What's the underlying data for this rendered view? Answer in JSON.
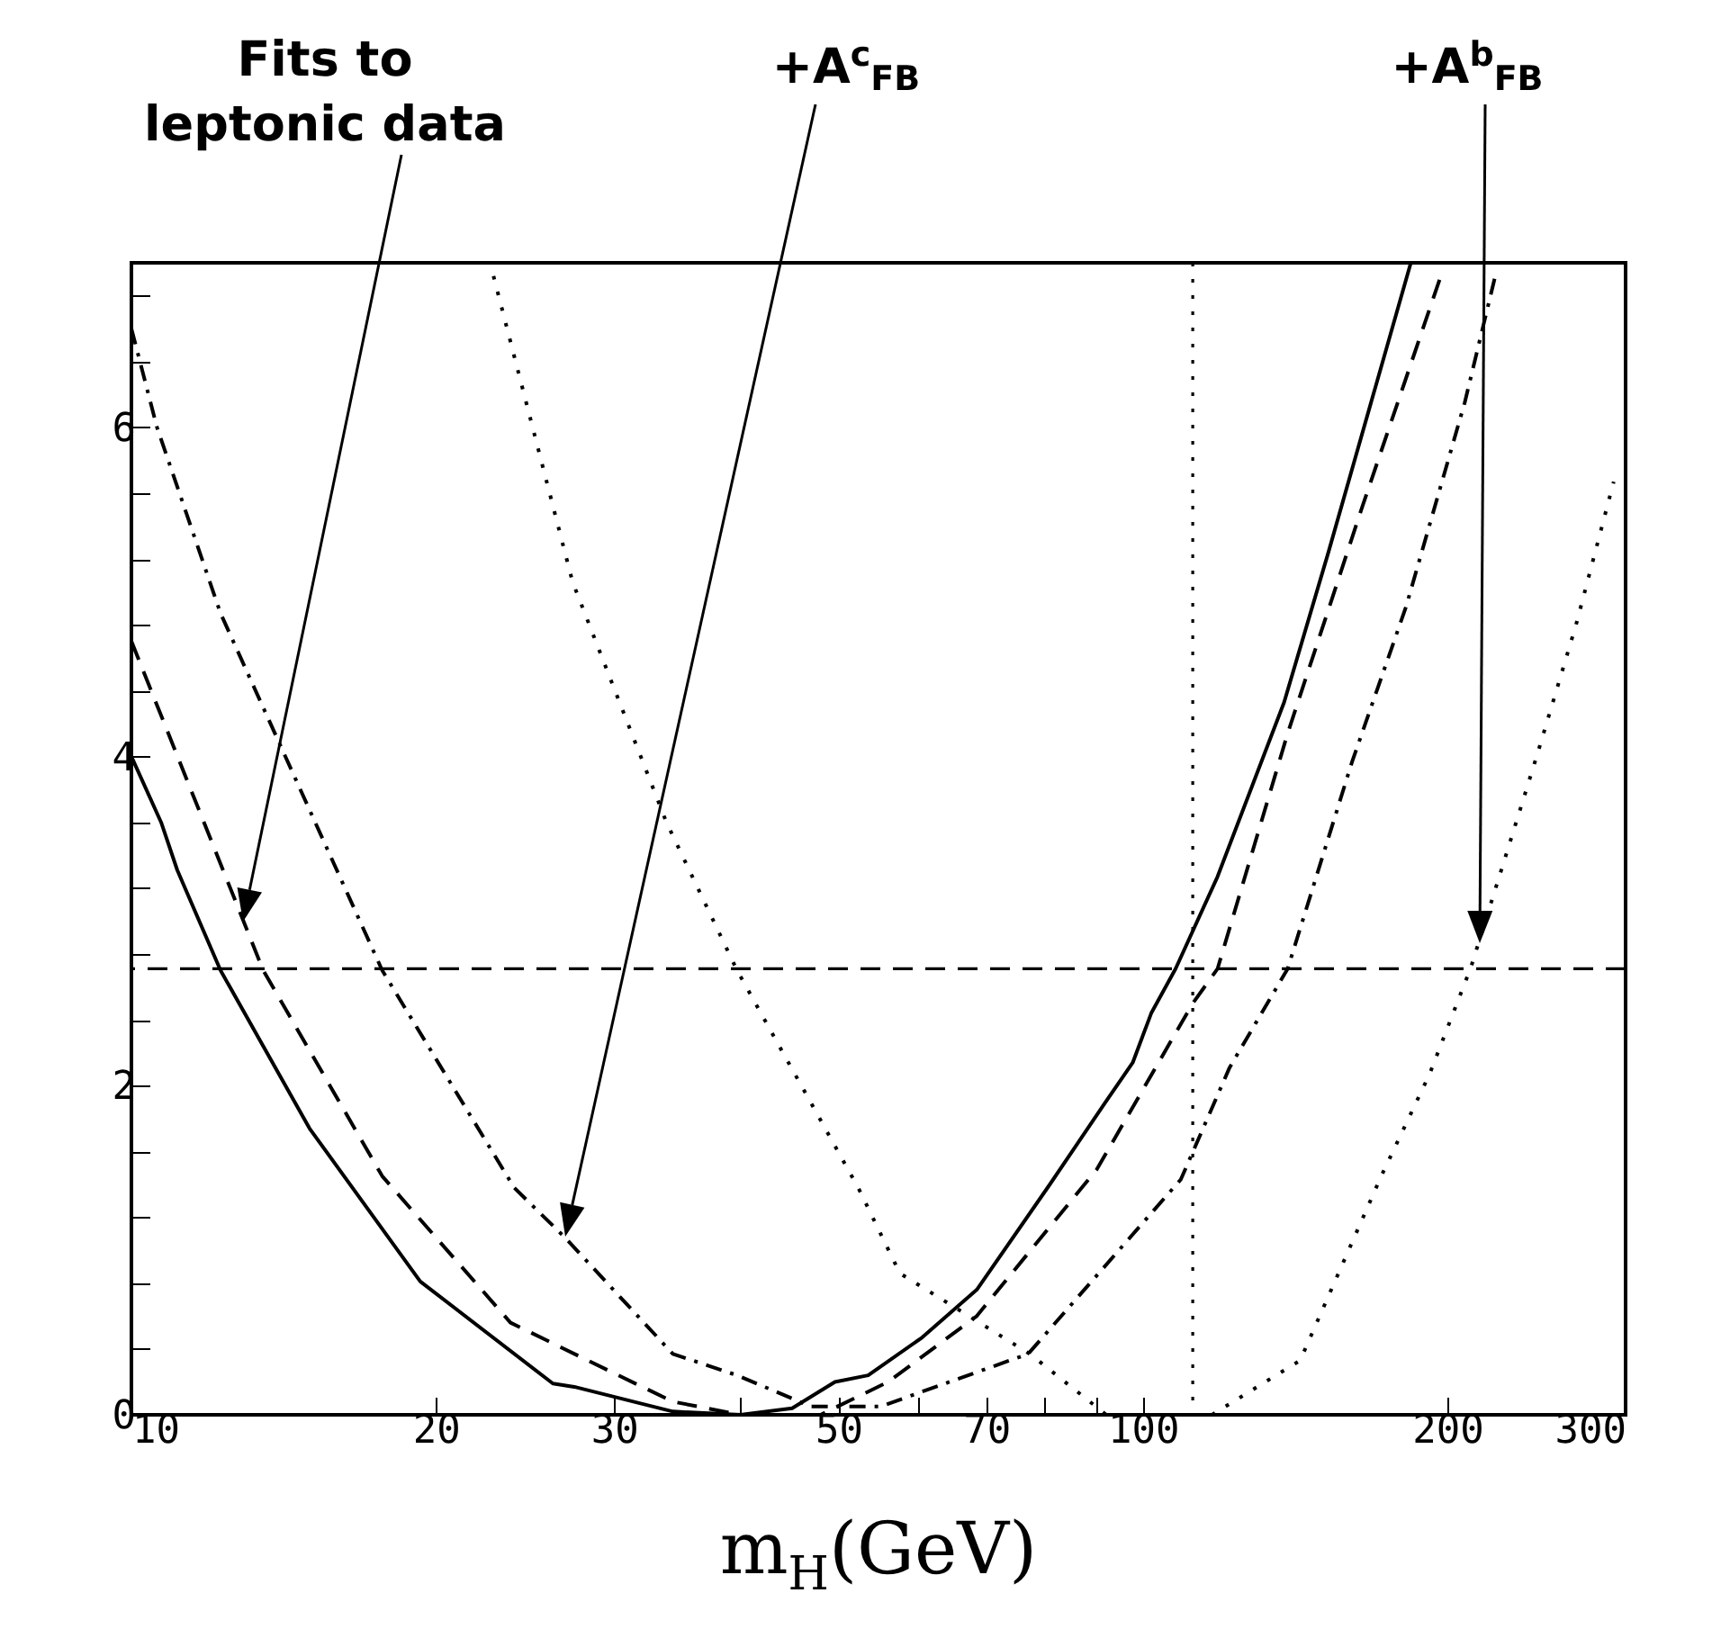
{
  "chart_data": {
    "type": "line",
    "xlabel": "m$_{H}$(GeV)",
    "log": "x",
    "xlim": [
      10,
      300
    ],
    "xticks": [
      10,
      20,
      30,
      {
        "value": 40,
        "label": null
      },
      50,
      {
        "value": 60,
        "label": null
      },
      70,
      {
        "value": 80,
        "label": null
      },
      {
        "value": 90,
        "label": null
      },
      100,
      200,
      300
    ],
    "ylim": [
      0,
      7
    ],
    "yticks": [
      0,
      {
        "value": 0.4,
        "label": null
      },
      {
        "value": 0.8,
        "label": null
      },
      {
        "value": 1.2,
        "label": null
      },
      {
        "value": 1.6,
        "label": null
      },
      2,
      {
        "value": 2.4,
        "label": null
      },
      {
        "value": 2.8,
        "label": null
      },
      {
        "value": 3.2,
        "label": null
      },
      {
        "value": 3.6,
        "label": null
      },
      4,
      {
        "value": 4.4,
        "label": null
      },
      {
        "value": 4.8,
        "label": null
      },
      {
        "value": 5.2,
        "label": null
      },
      {
        "value": 5.6,
        "label": null
      },
      6,
      {
        "value": 6.4,
        "label": null
      },
      {
        "value": 6.8,
        "label": null
      }
    ],
    "grid": false,
    "marker": "none",
    "series": [
      {
        "color": "#000000",
        "line_style": "solid",
        "x": [
          10,
          10.7,
          11.1,
          12.25,
          15,
          19.3,
          26.1,
          27.4,
          34.3,
          40,
          45,
          49.6,
          53.5,
          60.5,
          68.5,
          80.9,
          91.6,
          97.7,
          101.9,
          107.7,
          118.5,
          137.9,
          152.5,
          184
        ],
        "values": [
          4,
          3.6,
          3.31,
          2.7,
          1.74,
          0.81,
          0.19,
          0.17,
          0.02,
          0,
          0.04,
          0.2,
          0.24,
          0.47,
          0.76,
          1.4,
          1.89,
          2.14,
          2.44,
          2.71,
          3.27,
          4.33,
          5.24,
          7.0
        ]
      },
      {
        "color": "#000000",
        "line_style": "dashed",
        "x": [
          10,
          13.5,
          17.7,
          23.7,
          29.6,
          34.3,
          40,
          48,
          56,
          68.5,
          90,
          112,
          118.5,
          139,
          165,
          197
        ],
        "values": [
          4.7,
          2.7,
          1.45,
          0.56,
          0.27,
          0.08,
          0,
          0,
          0.2,
          0.6,
          1.49,
          2.5,
          2.71,
          4.14,
          5.53,
          6.92
        ]
      },
      {
        "color": "#000000",
        "line_style": "dashdot",
        "x": [
          10,
          10.6,
          12.25,
          17.7,
          23.9,
          26.8,
          34.3,
          39.7,
          47,
          55,
          77,
          109,
          121.8,
          139,
          161,
          182,
          208,
          223
        ],
        "values": [
          6.6,
          6.0,
          4.87,
          2.7,
          1.38,
          1.08,
          0.37,
          0.24,
          0.05,
          0.05,
          0.37,
          1.43,
          2.11,
          2.71,
          3.97,
          4.91,
          6.15,
          6.92
        ]
      },
      {
        "color": "#000000",
        "line_style": "dotted",
        "x": [
          22.8,
          27.3,
          33.8,
          39.7,
          52.3,
          57.5,
          77.3,
          92
        ],
        "values": [
          6.92,
          5.06,
          3.6,
          2.7,
          1.38,
          0.86,
          0.37,
          0
        ]
      },
      {
        "color": "#000000",
        "line_style": "dotted",
        "x": [
          117,
          143,
          172,
          192,
          211,
          229,
          245,
          268,
          292
        ],
        "values": [
          0,
          0.33,
          1.45,
          2.07,
          2.72,
          3.42,
          4.0,
          4.8,
          5.67
        ]
      }
    ],
    "ref_lines": [
      {
        "axis": "y",
        "value": 2.71,
        "color": "#000000",
        "line_style": "dashed"
      },
      {
        "axis": "x",
        "value": 112,
        "color": "#000000",
        "line_style": "dotted"
      }
    ],
    "annotations": [
      "Fits to leptonic data",
      "+A$^{c}$$_{FB}$",
      "+A$^{b}$$_{FB}$"
    ]
  }
}
